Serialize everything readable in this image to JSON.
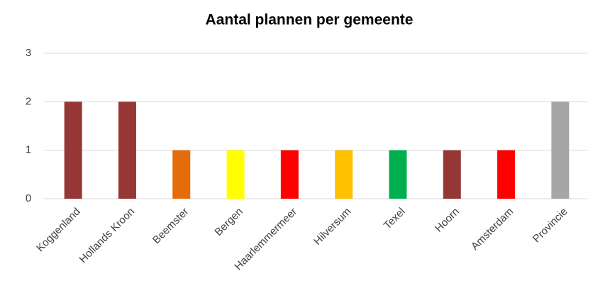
{
  "chart_data": {
    "type": "bar",
    "title": "Aantal plannen per gemeente",
    "categories": [
      "Koggenland",
      "Hollands Kroon",
      "Beemster",
      "Bergen",
      "Haarlemmermeer",
      "Hilversum",
      "Texel",
      "Hoorn",
      "Amsterdam",
      "Provincie"
    ],
    "values": [
      2,
      2,
      1,
      1,
      1,
      1,
      1,
      1,
      1,
      2
    ],
    "colors": [
      "#953735",
      "#953735",
      "#e46c0a",
      "#ffff00",
      "#ff0000",
      "#ffc000",
      "#00b050",
      "#953735",
      "#ff0000",
      "#a6a6a6"
    ],
    "ylim": [
      0,
      3
    ],
    "yticks": [
      0,
      1,
      2,
      3
    ],
    "grid": true
  }
}
